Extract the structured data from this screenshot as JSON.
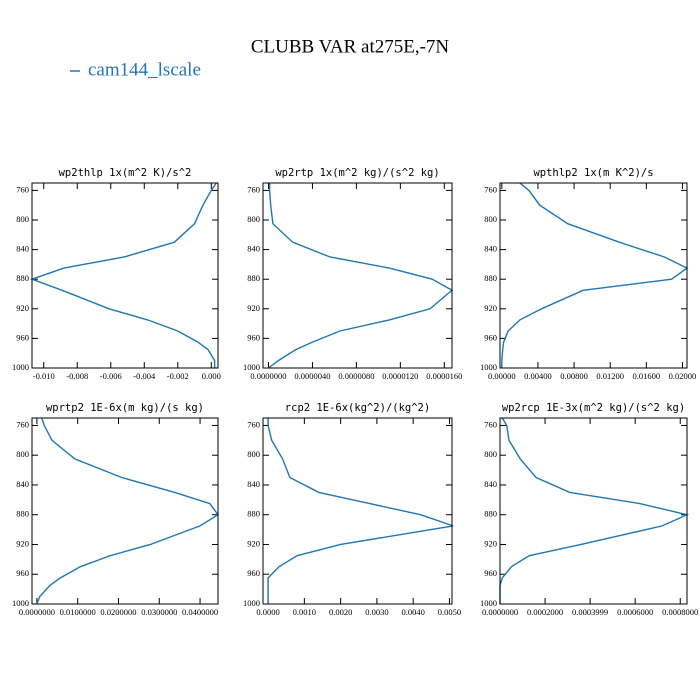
{
  "title": "CLUBB VAR at275E,-7N",
  "legend": {
    "name": "cam144_lscale",
    "color": "#1f77b4"
  },
  "chart_data": [
    {
      "type": "line",
      "title": "wp2thlp  1x(m^2 K)/s^2",
      "y": [
        750,
        760,
        780,
        805,
        830,
        850,
        865,
        880,
        895,
        920,
        935,
        950,
        965,
        975,
        990,
        1000
      ],
      "values": [
        0.0003,
        0.0,
        -0.0005,
        -0.001,
        -0.0022,
        -0.0052,
        -0.0088,
        -0.0107,
        -0.0089,
        -0.0061,
        -0.0038,
        -0.002,
        -0.0008,
        -0.0002,
        0.0002,
        0.0002
      ],
      "xlim": [
        -0.0107,
        0.0004
      ],
      "xticks": [
        {
          "value": -0.01,
          "label": "-0.010"
        },
        {
          "value": -0.008,
          "label": "-0.008"
        },
        {
          "value": -0.006,
          "label": "-0.006"
        },
        {
          "value": -0.004,
          "label": "-0.004"
        },
        {
          "value": -0.002,
          "label": "-0.002"
        },
        {
          "value": 0,
          "label": "0.000"
        }
      ],
      "ylim": [
        750,
        1000
      ],
      "y_inverted": true,
      "yticks": [
        760,
        800,
        840,
        880,
        920,
        960,
        1000
      ]
    },
    {
      "type": "line",
      "title": "wp2rtp  1x(m^2 kg)/(s^2 kg)",
      "y": [
        750,
        760,
        780,
        805,
        830,
        850,
        865,
        880,
        895,
        920,
        935,
        950,
        965,
        975,
        990,
        1000
      ],
      "values": [
        1e-07,
        1e-07,
        2e-07,
        4e-07,
        2.2e-06,
        5.6e-06,
        1.1e-05,
        1.49e-05,
        1.67e-05,
        1.47e-05,
        1.1e-05,
        6.5e-06,
        4e-06,
        2.5e-06,
        9e-07,
        0.0
      ],
      "xlim": [
        -5e-07,
        1.67e-05
      ],
      "xticks": [
        {
          "value": 0,
          "label": "0.0000000"
        },
        {
          "value": 4e-06,
          "label": "0.0000040"
        },
        {
          "value": 8e-06,
          "label": "0.0000080"
        },
        {
          "value": 1.2e-05,
          "label": "0.0000120"
        },
        {
          "value": 1.6e-05,
          "label": "0.0000160"
        }
      ],
      "ylim": [
        750,
        1000
      ],
      "y_inverted": true,
      "yticks": [
        760,
        800,
        840,
        880,
        920,
        960,
        1000
      ]
    },
    {
      "type": "line",
      "title": "wpthlp2  1x(m K^2)/s",
      "y": [
        750,
        760,
        780,
        805,
        830,
        850,
        865,
        880,
        895,
        920,
        935,
        950,
        965,
        975,
        990,
        1000
      ],
      "values": [
        0.002,
        0.003,
        0.0042,
        0.0073,
        0.013,
        0.018,
        0.0205,
        0.0188,
        0.009,
        0.0044,
        0.002,
        0.0007,
        0.0002,
        0.0001,
        0.0,
        0.0
      ],
      "xlim": [
        -0.0002,
        0.0205
      ],
      "xticks": [
        {
          "value": 0,
          "label": "0.00000"
        },
        {
          "value": 0.004,
          "label": "0.00400"
        },
        {
          "value": 0.008,
          "label": "0.00800"
        },
        {
          "value": 0.012,
          "label": "0.01200"
        },
        {
          "value": 0.016,
          "label": "0.01600"
        },
        {
          "value": 0.02,
          "label": "0.02000"
        }
      ],
      "ylim": [
        750,
        1000
      ],
      "y_inverted": true,
      "yticks": [
        760,
        800,
        840,
        880,
        920,
        960,
        1000
      ]
    },
    {
      "type": "line",
      "title": "wprtp2  1E-6x(m kg)/(s kg)",
      "y": [
        750,
        760,
        780,
        805,
        830,
        850,
        865,
        880,
        895,
        920,
        935,
        950,
        965,
        975,
        990,
        1000
      ],
      "values": [
        0.0012,
        0.0018,
        0.0037,
        0.0093,
        0.0208,
        0.0338,
        0.0424,
        0.0444,
        0.04,
        0.0278,
        0.018,
        0.0106,
        0.0057,
        0.0032,
        0.0007,
        0.0
      ],
      "xlim": [
        -0.0012,
        0.0444
      ],
      "xticks": [
        {
          "value": 0,
          "label": "0.0000000"
        },
        {
          "value": 0.01,
          "label": "0.0100000"
        },
        {
          "value": 0.02,
          "label": "0.0200000"
        },
        {
          "value": 0.03,
          "label": "0.0300000"
        },
        {
          "value": 0.04,
          "label": "0.0400000"
        }
      ],
      "ylim": [
        750,
        1000
      ],
      "y_inverted": true,
      "yticks": [
        760,
        800,
        840,
        880,
        920,
        960,
        1000
      ]
    },
    {
      "type": "line",
      "title": "rcp2  1E-6x(kg^2)/(kg^2)",
      "y": [
        750,
        760,
        780,
        805,
        830,
        850,
        865,
        880,
        895,
        920,
        935,
        950,
        965,
        975,
        990,
        1000
      ],
      "values": [
        0.0,
        0.0,
        0.0001,
        0.0004,
        0.0006,
        0.0014,
        0.0028,
        0.0042,
        0.0051,
        0.002,
        0.0008,
        0.0003,
        0.0,
        0.0,
        0.0,
        0.0
      ],
      "xlim": [
        -0.00014,
        0.00507
      ],
      "xticks": [
        {
          "value": 0,
          "label": "0.0000"
        },
        {
          "value": 0.001,
          "label": "0.0010"
        },
        {
          "value": 0.002,
          "label": "0.0020"
        },
        {
          "value": 0.003,
          "label": "0.0030"
        },
        {
          "value": 0.004,
          "label": "0.0040"
        },
        {
          "value": 0.005,
          "label": "0.0050"
        }
      ],
      "ylim": [
        750,
        1000
      ],
      "y_inverted": true,
      "yticks": [
        760,
        800,
        840,
        880,
        920,
        960,
        1000
      ]
    },
    {
      "type": "line",
      "title": "wp2rcp  1E-3x(m^2 kg)/(s^2 kg)",
      "y": [
        750,
        760,
        780,
        805,
        830,
        850,
        865,
        880,
        895,
        920,
        935,
        950,
        965,
        975,
        990,
        1000
      ],
      "values": [
        1e-05,
        3e-05,
        4e-05,
        9e-05,
        0.00016,
        0.00031,
        0.00062,
        0.00083,
        0.00072,
        0.00036,
        0.00013,
        5e-05,
        1e-05,
        0.0,
        0.0,
        0.0
      ],
      "xlim": [
        0,
        0.00083
      ],
      "xticks": [
        {
          "value": 0,
          "label": "0.0000000"
        },
        {
          "value": 0.0002,
          "label": "0.0002000"
        },
        {
          "value": 0.0004,
          "label": "0.0003999"
        },
        {
          "value": 0.0006,
          "label": "0.0006000"
        },
        {
          "value": 0.0008,
          "label": "0.0008000"
        }
      ],
      "ylim": [
        750,
        1000
      ],
      "y_inverted": true,
      "yticks": [
        760,
        800,
        840,
        880,
        920,
        960,
        1000
      ]
    }
  ]
}
